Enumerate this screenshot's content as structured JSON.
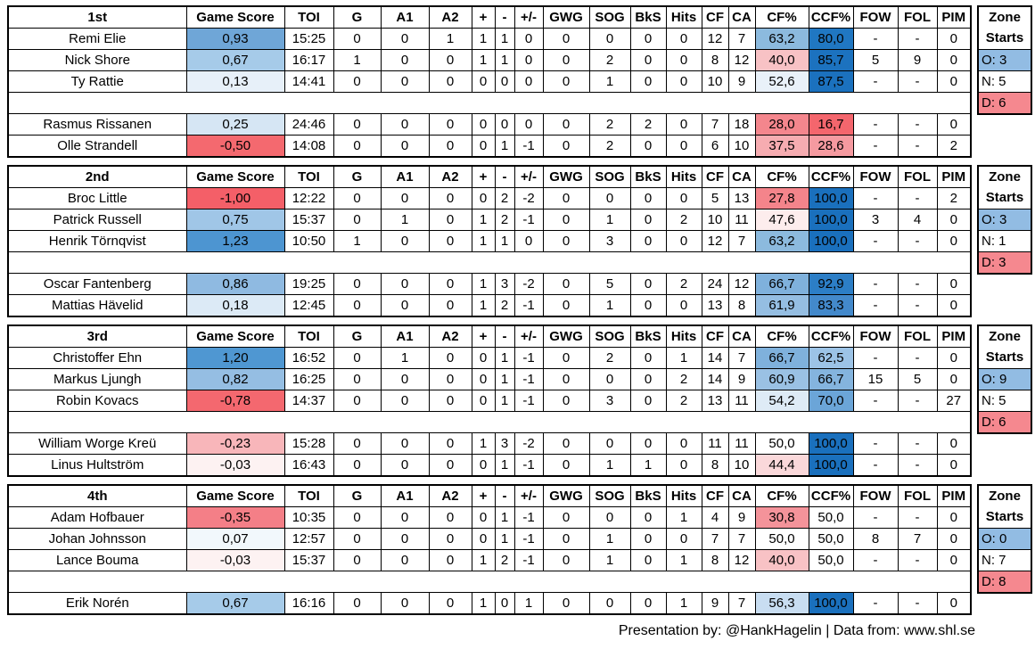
{
  "chart_data": {
    "type": "table",
    "columns": [
      "Game Score",
      "TOI",
      "G",
      "A1",
      "A2",
      "+",
      "-",
      "+/-",
      "GWG",
      "SOG",
      "BkS",
      "Hits",
      "CF",
      "CA",
      "CF%",
      "CCF%",
      "FOW",
      "FOL",
      "PIM"
    ],
    "blocks": [
      {
        "line_label": "1st",
        "zone_starts": {
          "o_label": "O: 3",
          "n_label": "N: 5",
          "d_label": "D: 6"
        },
        "players_top": [
          {
            "name": "Remi Elie",
            "gs": "0,93",
            "gs_bg": "#6FA6D7",
            "toi": "15:25",
            "g": "0",
            "a1": "0",
            "a2": "1",
            "plus": "1",
            "minus": "1",
            "pm": "0",
            "gwg": "0",
            "sog": "0",
            "bks": "0",
            "hits": "0",
            "cf": "12",
            "ca": "7",
            "cfp": "63,2",
            "cfp_bg": "#8CBADE",
            "ccfp": "80,0",
            "ccfp_bg": "#2077C2",
            "fow": "-",
            "fol": "-",
            "pim": "0"
          },
          {
            "name": "Nick Shore",
            "gs": "0,67",
            "gs_bg": "#A6CBE9",
            "toi": "16:17",
            "g": "1",
            "a1": "0",
            "a2": "0",
            "plus": "1",
            "minus": "1",
            "pm": "0",
            "gwg": "0",
            "sog": "2",
            "bks": "0",
            "hits": "0",
            "cf": "8",
            "ca": "12",
            "cfp": "40,0",
            "cfp_bg": "#F8C2C5",
            "ccfp": "85,7",
            "ccfp_bg": "#1C72BF",
            "fow": "5",
            "fol": "9",
            "pim": "0"
          },
          {
            "name": "Ty Rattie",
            "gs": "0,13",
            "gs_bg": "#E7F0F9",
            "toi": "14:41",
            "g": "0",
            "a1": "0",
            "a2": "0",
            "plus": "0",
            "minus": "0",
            "pm": "0",
            "gwg": "0",
            "sog": "1",
            "bks": "0",
            "hits": "0",
            "cf": "10",
            "ca": "9",
            "cfp": "52,6",
            "cfp_bg": "#E9F1F9",
            "ccfp": "87,5",
            "ccfp_bg": "#1B71BE",
            "fow": "-",
            "fol": "-",
            "pim": "0"
          }
        ],
        "players_bottom": [
          {
            "name": "Rasmus Rissanen",
            "gs": "0,25",
            "gs_bg": "#D6E6F4",
            "toi": "24:46",
            "g": "0",
            "a1": "0",
            "a2": "0",
            "plus": "0",
            "minus": "0",
            "pm": "0",
            "gwg": "0",
            "sog": "2",
            "bks": "2",
            "hits": "0",
            "cf": "7",
            "ca": "18",
            "cfp": "28,0",
            "cfp_bg": "#F4868D",
            "ccfp": "16,7",
            "ccfp_bg": "#F4666D",
            "fow": "-",
            "fol": "-",
            "pim": "0"
          },
          {
            "name": "Olle Strandell",
            "gs": "-0,50",
            "gs_bg": "#F4696F",
            "toi": "14:08",
            "g": "0",
            "a1": "0",
            "a2": "0",
            "plus": "0",
            "minus": "1",
            "pm": "-1",
            "gwg": "0",
            "sog": "2",
            "bks": "0",
            "hits": "0",
            "cf": "6",
            "ca": "10",
            "cfp": "37,5",
            "cfp_bg": "#F6ACB1",
            "ccfp": "28,6",
            "ccfp_bg": "#F59AA0",
            "fow": "-",
            "fol": "-",
            "pim": "2"
          }
        ]
      },
      {
        "line_label": "2nd",
        "zone_starts": {
          "o_label": "O: 3",
          "n_label": "N: 1",
          "d_label": "D: 3"
        },
        "players_top": [
          {
            "name": "Broc Little",
            "gs": "-1,00",
            "gs_bg": "#F45F68",
            "toi": "12:22",
            "g": "0",
            "a1": "0",
            "a2": "0",
            "plus": "0",
            "minus": "2",
            "pm": "-2",
            "gwg": "0",
            "sog": "0",
            "bks": "0",
            "hits": "0",
            "cf": "5",
            "ca": "13",
            "cfp": "27,8",
            "cfp_bg": "#F4848B",
            "ccfp": "100,0",
            "ccfp_bg": "#1A70BD",
            "fow": "-",
            "fol": "-",
            "pim": "2"
          },
          {
            "name": "Patrick Russell",
            "gs": "0,75",
            "gs_bg": "#A0C6E7",
            "toi": "15:37",
            "g": "0",
            "a1": "1",
            "a2": "0",
            "plus": "1",
            "minus": "2",
            "pm": "-1",
            "gwg": "0",
            "sog": "1",
            "bks": "0",
            "hits": "2",
            "cf": "10",
            "ca": "11",
            "cfp": "47,6",
            "cfp_bg": "#FDEDED",
            "ccfp": "100,0",
            "ccfp_bg": "#1A70BD",
            "fow": "3",
            "fol": "4",
            "pim": "0"
          },
          {
            "name": "Henrik Törnqvist",
            "gs": "1,23",
            "gs_bg": "#4D95D1",
            "toi": "10:50",
            "g": "1",
            "a1": "0",
            "a2": "0",
            "plus": "1",
            "minus": "1",
            "pm": "0",
            "gwg": "0",
            "sog": "3",
            "bks": "0",
            "hits": "0",
            "cf": "12",
            "ca": "7",
            "cfp": "63,2",
            "cfp_bg": "#8CBADE",
            "ccfp": "100,0",
            "ccfp_bg": "#1A70BD",
            "fow": "-",
            "fol": "-",
            "pim": "0"
          }
        ],
        "players_bottom": [
          {
            "name": "Oscar Fantenberg",
            "gs": "0,86",
            "gs_bg": "#8FBAE1",
            "toi": "19:25",
            "g": "0",
            "a1": "0",
            "a2": "0",
            "plus": "1",
            "minus": "3",
            "pm": "-2",
            "gwg": "0",
            "sog": "5",
            "bks": "0",
            "hits": "2",
            "cf": "24",
            "ca": "12",
            "cfp": "66,7",
            "cfp_bg": "#7FB1DC",
            "ccfp": "92,9",
            "ccfp_bg": "#2C7EC6",
            "fow": "-",
            "fol": "-",
            "pim": "0"
          },
          {
            "name": "Mattias Hävelid",
            "gs": "0,18",
            "gs_bg": "#DCEAF6",
            "toi": "12:45",
            "g": "0",
            "a1": "0",
            "a2": "0",
            "plus": "1",
            "minus": "2",
            "pm": "-1",
            "gwg": "0",
            "sog": "1",
            "bks": "0",
            "hits": "0",
            "cf": "13",
            "ca": "8",
            "cfp": "61,9",
            "cfp_bg": "#95BEE2",
            "ccfp": "83,3",
            "ccfp_bg": "#4389CB",
            "fow": "-",
            "fol": "-",
            "pim": "0"
          }
        ]
      },
      {
        "line_label": "3rd",
        "zone_starts": {
          "o_label": "O: 9",
          "n_label": "N: 5",
          "d_label": "D: 6"
        },
        "players_top": [
          {
            "name": "Christoffer Ehn",
            "gs": "1,20",
            "gs_bg": "#4F97D2",
            "toi": "16:52",
            "g": "0",
            "a1": "1",
            "a2": "0",
            "plus": "0",
            "minus": "1",
            "pm": "-1",
            "gwg": "0",
            "sog": "2",
            "bks": "0",
            "hits": "1",
            "cf": "14",
            "ca": "7",
            "cfp": "66,7",
            "cfp_bg": "#7FB1DC",
            "ccfp": "62,5",
            "ccfp_bg": "#9CC3E6",
            "fow": "-",
            "fol": "-",
            "pim": "0"
          },
          {
            "name": "Markus Ljungh",
            "gs": "0,82",
            "gs_bg": "#95BEE3",
            "toi": "16:25",
            "g": "0",
            "a1": "0",
            "a2": "0",
            "plus": "0",
            "minus": "1",
            "pm": "-1",
            "gwg": "0",
            "sog": "0",
            "bks": "0",
            "hits": "2",
            "cf": "14",
            "ca": "9",
            "cfp": "60,9",
            "cfp_bg": "#9AC1E4",
            "ccfp": "66,7",
            "ccfp_bg": "#84B4DE",
            "fow": "15",
            "fol": "5",
            "pim": "0"
          },
          {
            "name": "Robin Kovacs",
            "gs": "-0,78",
            "gs_bg": "#F4686F",
            "toi": "14:37",
            "g": "0",
            "a1": "0",
            "a2": "0",
            "plus": "0",
            "minus": "1",
            "pm": "-1",
            "gwg": "0",
            "sog": "3",
            "bks": "0",
            "hits": "2",
            "cf": "13",
            "ca": "11",
            "cfp": "54,2",
            "cfp_bg": "#DEEBF6",
            "ccfp": "70,0",
            "ccfp_bg": "#6BA5D8",
            "fow": "-",
            "fol": "-",
            "pim": "27"
          }
        ],
        "players_bottom": [
          {
            "name": "William Worge Kreü",
            "gs": "-0,23",
            "gs_bg": "#F8B6BA",
            "toi": "15:28",
            "g": "0",
            "a1": "0",
            "a2": "0",
            "plus": "1",
            "minus": "3",
            "pm": "-2",
            "gwg": "0",
            "sog": "0",
            "bks": "0",
            "hits": "0",
            "cf": "11",
            "ca": "11",
            "cfp": "50,0",
            "cfp_bg": "#FFFFFF",
            "ccfp": "100,0",
            "ccfp_bg": "#1A70BD",
            "fow": "-",
            "fol": "-",
            "pim": "0"
          },
          {
            "name": "Linus Hultström",
            "gs": "-0,03",
            "gs_bg": "#FDF2F2",
            "toi": "16:43",
            "g": "0",
            "a1": "0",
            "a2": "0",
            "plus": "0",
            "minus": "1",
            "pm": "-1",
            "gwg": "0",
            "sog": "1",
            "bks": "1",
            "hits": "0",
            "cf": "8",
            "ca": "10",
            "cfp": "44,4",
            "cfp_bg": "#FAD8DA",
            "ccfp": "100,0",
            "ccfp_bg": "#1A70BD",
            "fow": "-",
            "fol": "-",
            "pim": "0"
          }
        ]
      },
      {
        "line_label": "4th",
        "zone_starts": {
          "o_label": "O: 0",
          "n_label": "N: 7",
          "d_label": "D: 8"
        },
        "players_top": [
          {
            "name": "Adam Hofbauer",
            "gs": "-0,35",
            "gs_bg": "#F47F87",
            "toi": "10:35",
            "g": "0",
            "a1": "0",
            "a2": "0",
            "plus": "0",
            "minus": "1",
            "pm": "-1",
            "gwg": "0",
            "sog": "0",
            "bks": "0",
            "hits": "1",
            "cf": "4",
            "ca": "9",
            "cfp": "30,8",
            "cfp_bg": "#F4939A",
            "ccfp": "50,0",
            "ccfp_bg": "#FFFFFF",
            "fow": "-",
            "fol": "-",
            "pim": "0"
          },
          {
            "name": "Johan Johnsson",
            "gs": "0,07",
            "gs_bg": "#F2F8FC",
            "toi": "12:57",
            "g": "0",
            "a1": "0",
            "a2": "0",
            "plus": "0",
            "minus": "1",
            "pm": "-1",
            "gwg": "0",
            "sog": "1",
            "bks": "0",
            "hits": "0",
            "cf": "7",
            "ca": "7",
            "cfp": "50,0",
            "cfp_bg": "#FFFFFF",
            "ccfp": "50,0",
            "ccfp_bg": "#FFFFFF",
            "fow": "8",
            "fol": "7",
            "pim": "0"
          },
          {
            "name": "Lance Bouma",
            "gs": "-0,03",
            "gs_bg": "#FDF2F2",
            "toi": "15:37",
            "g": "0",
            "a1": "0",
            "a2": "0",
            "plus": "1",
            "minus": "2",
            "pm": "-1",
            "gwg": "0",
            "sog": "1",
            "bks": "0",
            "hits": "1",
            "cf": "8",
            "ca": "12",
            "cfp": "40,0",
            "cfp_bg": "#F8C2C5",
            "ccfp": "50,0",
            "ccfp_bg": "#FFFFFF",
            "fow": "-",
            "fol": "-",
            "pim": "0"
          }
        ],
        "players_bottom": [
          {
            "name": "Erik Norén",
            "gs": "0,67",
            "gs_bg": "#A6CBE9",
            "toi": "16:16",
            "g": "0",
            "a1": "0",
            "a2": "0",
            "plus": "1",
            "minus": "0",
            "pm": "1",
            "gwg": "0",
            "sog": "0",
            "bks": "0",
            "hits": "1",
            "cf": "9",
            "ca": "7",
            "cfp": "56,3",
            "cfp_bg": "#C8DDF1",
            "ccfp": "100,0",
            "ccfp_bg": "#1A70BD",
            "fow": "-",
            "fol": "-",
            "pim": "0"
          }
        ]
      }
    ]
  },
  "zone_panel": {
    "line1": "Zone",
    "line2": "Starts",
    "offensive_color": "#92BCE3",
    "neutral_color": "#FFFFFF",
    "defensive_color": "#F5888F"
  },
  "footer": {
    "credit": "Presentation by: @HankHagelin | Data from: www.shl.se"
  }
}
